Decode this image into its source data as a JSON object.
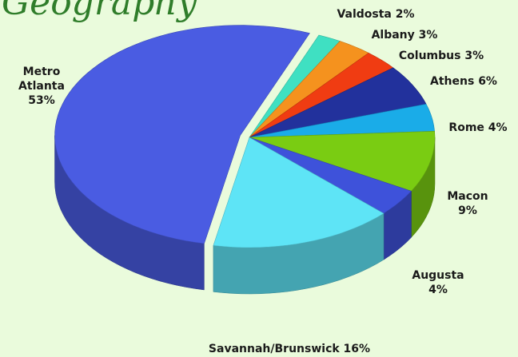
{
  "chart_data": {
    "type": "pie",
    "title": "Geography",
    "categories": [
      "Valdosta",
      "Albany",
      "Columbus",
      "Athens",
      "Rome",
      "Macon",
      "Augusta",
      "Savannah/Brunswick",
      "Metro Atlanta"
    ],
    "values": [
      2,
      3,
      3,
      6,
      4,
      9,
      4,
      16,
      53
    ],
    "value_labels": [
      "2%",
      "3%",
      "3%",
      "6%",
      "4%",
      "9%",
      "4%",
      "16%",
      "53%"
    ],
    "colors": [
      "#3fe0c2",
      "#f5921e",
      "#f03c12",
      "#22319c",
      "#1aace8",
      "#7acc12",
      "#3e52da",
      "#5ee4f6",
      "#4a5ce2"
    ]
  }
}
